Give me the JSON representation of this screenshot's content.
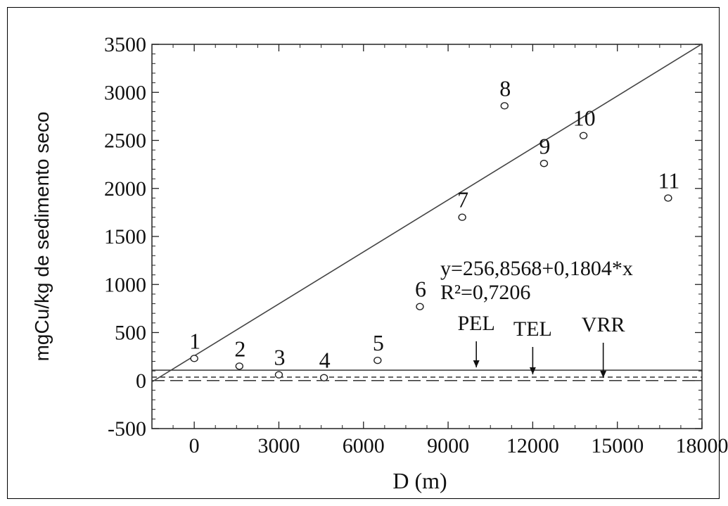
{
  "chart_data": {
    "type": "scatter",
    "xlabel": "D (m)",
    "ylabel": "mgCu/kg de sedimento seco",
    "xlim": [
      -1500,
      18000
    ],
    "ylim": [
      -500,
      3500
    ],
    "x_ticks": [
      0,
      3000,
      6000,
      9000,
      12000,
      15000,
      18000
    ],
    "y_ticks": [
      3500,
      3000,
      2500,
      2000,
      1500,
      1000,
      500,
      0,
      -500
    ],
    "grid": false,
    "points": [
      {
        "label": "1",
        "x": 0,
        "y": 230
      },
      {
        "label": "2",
        "x": 1600,
        "y": 150
      },
      {
        "label": "3",
        "x": 3000,
        "y": 60
      },
      {
        "label": "4",
        "x": 4600,
        "y": 30
      },
      {
        "label": "5",
        "x": 6500,
        "y": 210
      },
      {
        "label": "6",
        "x": 8000,
        "y": 770
      },
      {
        "label": "7",
        "x": 9500,
        "y": 1700
      },
      {
        "label": "8",
        "x": 11000,
        "y": 2860
      },
      {
        "label": "9",
        "x": 12400,
        "y": 2260
      },
      {
        "label": "10",
        "x": 13800,
        "y": 2550
      },
      {
        "label": "11",
        "x": 16800,
        "y": 1900
      }
    ],
    "regression": {
      "intercept": 256.8568,
      "slope": 0.1804
    },
    "equation": "y=256,8568+0,1804*x",
    "r2_text": "R²=0,7206",
    "reference_lines": [
      {
        "label": "PEL",
        "value": 108,
        "style": "solid",
        "arrow_x": 10000
      },
      {
        "label": "TEL",
        "value": 35.7,
        "style": "dashed",
        "arrow_x": 12000
      },
      {
        "label": "VRR",
        "value": 0,
        "style": "longdash",
        "arrow_x": 14500
      }
    ]
  }
}
